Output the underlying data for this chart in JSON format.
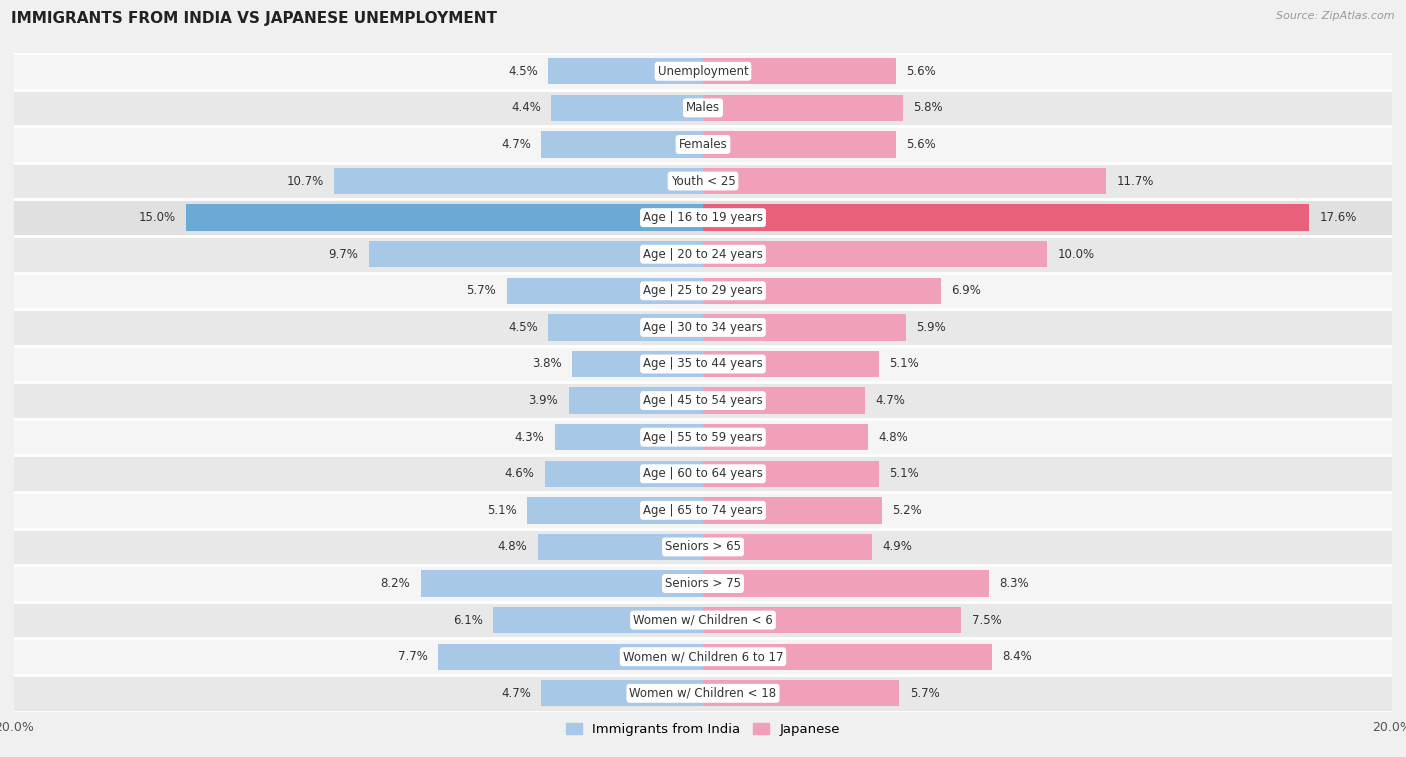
{
  "title": "IMMIGRANTS FROM INDIA VS JAPANESE UNEMPLOYMENT",
  "source": "Source: ZipAtlas.com",
  "categories": [
    "Unemployment",
    "Males",
    "Females",
    "Youth < 25",
    "Age | 16 to 19 years",
    "Age | 20 to 24 years",
    "Age | 25 to 29 years",
    "Age | 30 to 34 years",
    "Age | 35 to 44 years",
    "Age | 45 to 54 years",
    "Age | 55 to 59 years",
    "Age | 60 to 64 years",
    "Age | 65 to 74 years",
    "Seniors > 65",
    "Seniors > 75",
    "Women w/ Children < 6",
    "Women w/ Children 6 to 17",
    "Women w/ Children < 18"
  ],
  "india_values": [
    4.5,
    4.4,
    4.7,
    10.7,
    15.0,
    9.7,
    5.7,
    4.5,
    3.8,
    3.9,
    4.3,
    4.6,
    5.1,
    4.8,
    8.2,
    6.1,
    7.7,
    4.7
  ],
  "japanese_values": [
    5.6,
    5.8,
    5.6,
    11.7,
    17.6,
    10.0,
    6.9,
    5.9,
    5.1,
    4.7,
    4.8,
    5.1,
    5.2,
    4.9,
    8.3,
    7.5,
    8.4,
    5.7
  ],
  "india_color": "#a8c8e8",
  "japanese_color": "#f0a0b8",
  "india_highlight_color": "#6aaad4",
  "japanese_highlight_color": "#e8607a",
  "row_colors": [
    "#f5f5f5",
    "#e8e8e8"
  ],
  "highlight_row_color": "#e0e0e0",
  "background_color": "#f0f0f0",
  "xlim": 20.0,
  "bar_height": 0.72,
  "legend_india": "Immigrants from India",
  "legend_japanese": "Japanese",
  "highlight_row": 4,
  "title_fontsize": 11,
  "source_fontsize": 8,
  "label_fontsize": 8.5,
  "cat_fontsize": 8.5
}
